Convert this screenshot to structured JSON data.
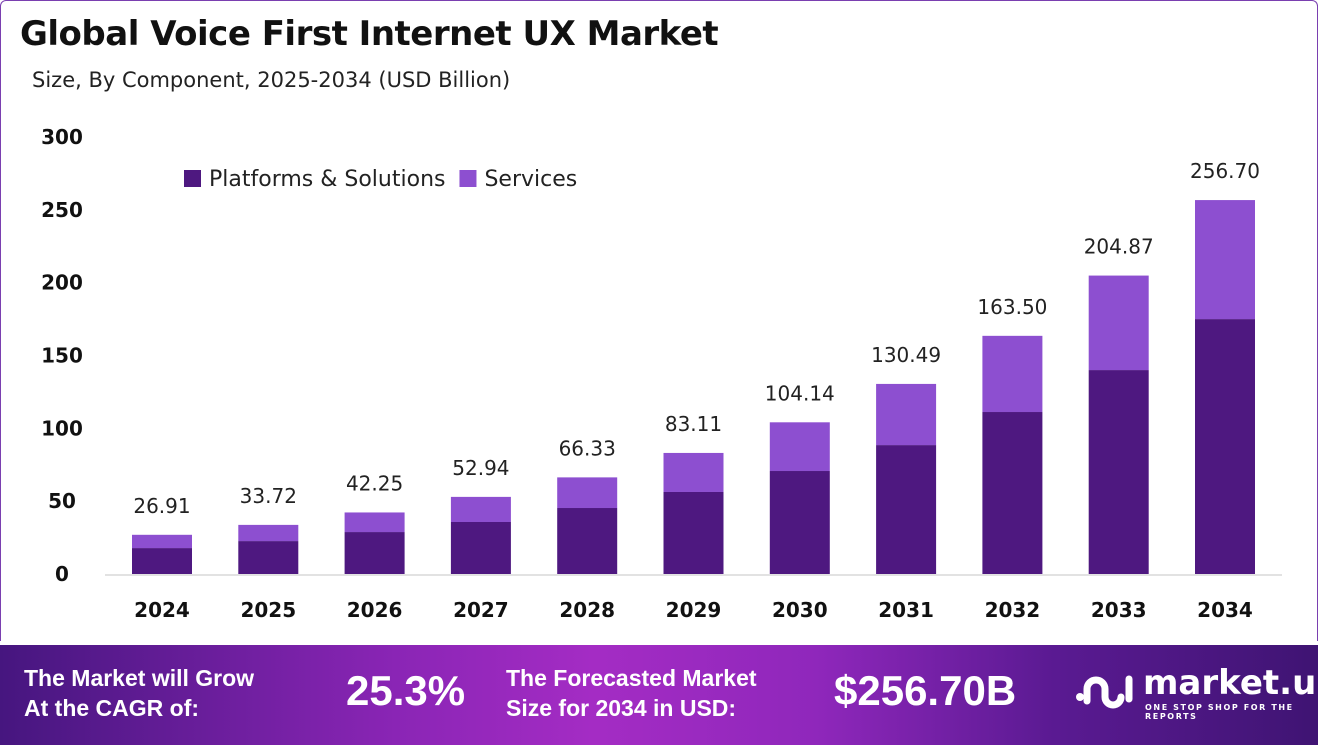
{
  "header": {
    "title": "Global Voice First Internet UX Market",
    "subtitle": "Size, By Component, 2025-2034 (USD Billion)"
  },
  "chart_data": {
    "type": "bar",
    "stacked": true,
    "categories": [
      "2024",
      "2025",
      "2026",
      "2027",
      "2028",
      "2029",
      "2030",
      "2031",
      "2032",
      "2033",
      "2034"
    ],
    "series": [
      {
        "name": "Platforms & Solutions",
        "color": "#4e1880",
        "values": [
          17.8,
          22.6,
          28.8,
          35.7,
          45.3,
          56.3,
          70.7,
          88.5,
          111.2,
          140.0,
          175.0
        ]
      },
      {
        "name": "Services",
        "color": "#8d4fd0",
        "values": [
          9.11,
          11.12,
          13.45,
          17.24,
          21.03,
          26.81,
          33.44,
          41.99,
          52.3,
          64.87,
          81.7
        ]
      }
    ],
    "totals": [
      "26.91",
      "33.72",
      "42.25",
      "52.94",
      "66.33",
      "83.11",
      "104.14",
      "130.49",
      "163.50",
      "204.87",
      "256.70"
    ],
    "yticks": [
      "0",
      "50",
      "100",
      "150",
      "200",
      "250",
      "300"
    ],
    "ylim": [
      0,
      300
    ],
    "grid": false,
    "legend": "top-left"
  },
  "footer": {
    "cagr_label_1": "The Market will Grow",
    "cagr_label_2": "At the CAGR of:",
    "cagr_value": "25.3%",
    "forecast_label_1": "The Forecasted Market",
    "forecast_label_2": "Size for 2034 in USD:",
    "forecast_value": "$256.70B",
    "logo_text": "market.us",
    "logo_tagline": "ONE STOP SHOP FOR THE REPORTS"
  }
}
